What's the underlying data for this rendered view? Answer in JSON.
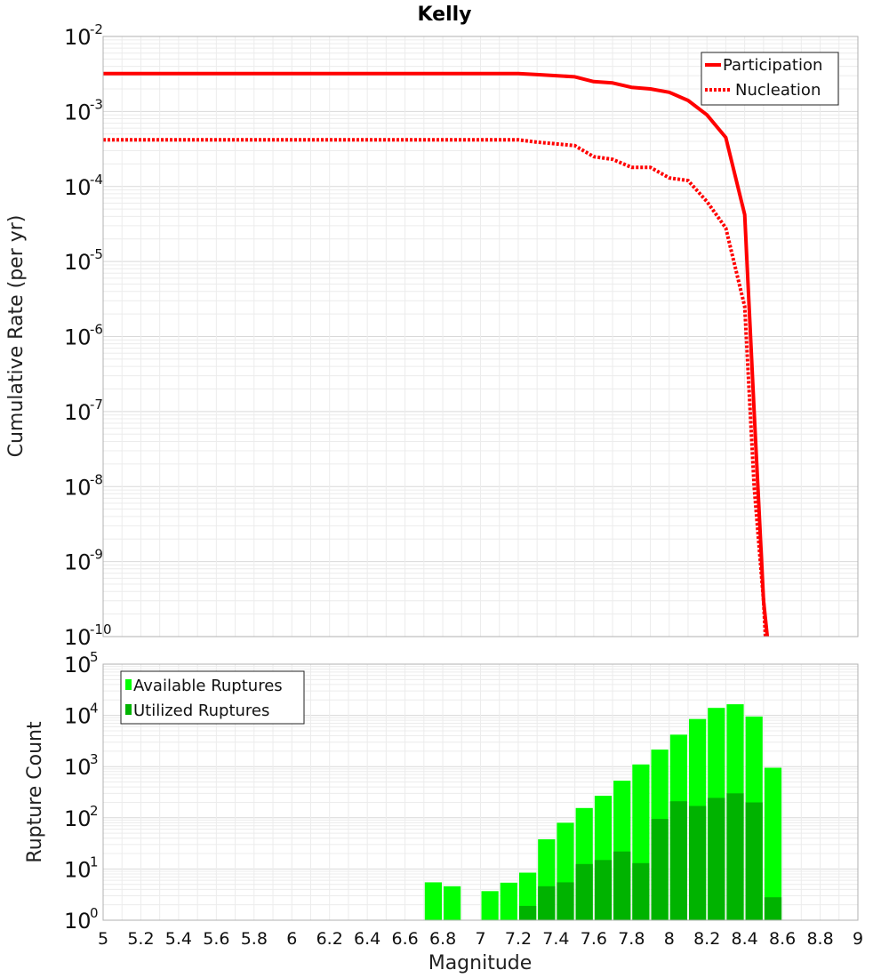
{
  "chart_data": [
    {
      "type": "line",
      "title": "Kelly",
      "xlabel": "Magnitude",
      "ylabel": "Cumulative Rate (per yr)",
      "yscale": "log",
      "xlim": [
        5,
        9
      ],
      "ylim_exp": [
        -10,
        -2
      ],
      "ytick_exponents": [
        "-10",
        "-9",
        "-8",
        "-7",
        "-6",
        "-5",
        "-4",
        "-3",
        "-2"
      ],
      "grid": true,
      "legend_position": "top-right",
      "series": [
        {
          "name": "Participation",
          "style": "solid",
          "color": "#ff0000",
          "x": [
            5.0,
            7.2,
            7.3,
            7.4,
            7.5,
            7.6,
            7.7,
            7.8,
            7.9,
            8.0,
            8.1,
            8.2,
            8.3,
            8.4,
            8.45,
            8.5,
            8.52
          ],
          "y": [
            0.0032,
            0.0032,
            0.0031,
            0.003,
            0.0029,
            0.0025,
            0.0024,
            0.0021,
            0.002,
            0.0018,
            0.0014,
            0.0009,
            0.00045,
            4.2e-05,
            1e-07,
            3e-10,
            1e-10
          ]
        },
        {
          "name": "Nucleation",
          "style": "dotted",
          "color": "#ff0000",
          "x": [
            5.0,
            7.2,
            7.3,
            7.4,
            7.5,
            7.6,
            7.7,
            7.8,
            7.9,
            8.0,
            8.1,
            8.2,
            8.3,
            8.4,
            8.45,
            8.5,
            8.51
          ],
          "y": [
            0.00042,
            0.00042,
            0.00039,
            0.00037,
            0.00035,
            0.00025,
            0.00023,
            0.00018,
            0.00018,
            0.00013,
            0.00012,
            6.3e-05,
            2.8e-05,
            2.5e-06,
            1e-08,
            3e-10,
            1e-10
          ]
        }
      ]
    },
    {
      "type": "bar",
      "xlabel": "Magnitude",
      "ylabel": "Rupture Count",
      "yscale": "log",
      "xlim": [
        5,
        9
      ],
      "ylim_exp": [
        0,
        5
      ],
      "ytick_exponents": [
        "0",
        "1",
        "2",
        "3",
        "4",
        "5"
      ],
      "xticks": [
        "5",
        "5.2",
        "5.4",
        "5.6",
        "5.8",
        "6",
        "6.2",
        "6.4",
        "6.6",
        "6.8",
        "7",
        "7.2",
        "7.4",
        "7.6",
        "7.8",
        "8",
        "8.2",
        "8.4",
        "8.6",
        "8.8",
        "9"
      ],
      "grid": true,
      "legend_position": "top-left",
      "series": [
        {
          "name": "Available Ruptures",
          "color": "#00ff00",
          "x": [
            6.75,
            6.85,
            7.05,
            7.15,
            7.25,
            7.35,
            7.45,
            7.55,
            7.65,
            7.75,
            7.85,
            7.95,
            8.05,
            8.15,
            8.25,
            8.35,
            8.45,
            8.55
          ],
          "values": [
            5.5,
            4.6,
            3.7,
            5.4,
            8.5,
            38,
            80,
            155,
            270,
            530,
            1100,
            2150,
            4200,
            8500,
            14000,
            16500,
            9500,
            950
          ]
        },
        {
          "name": "Utilized Ruptures",
          "color": "#00b300",
          "x": [
            7.25,
            7.35,
            7.45,
            7.55,
            7.65,
            7.75,
            7.85,
            7.95,
            8.05,
            8.15,
            8.25,
            8.35,
            8.45,
            8.55
          ],
          "values": [
            1.9,
            4.6,
            5.5,
            12.5,
            15,
            22,
            13,
            95,
            210,
            170,
            245,
            300,
            200,
            2.8
          ]
        }
      ]
    }
  ]
}
